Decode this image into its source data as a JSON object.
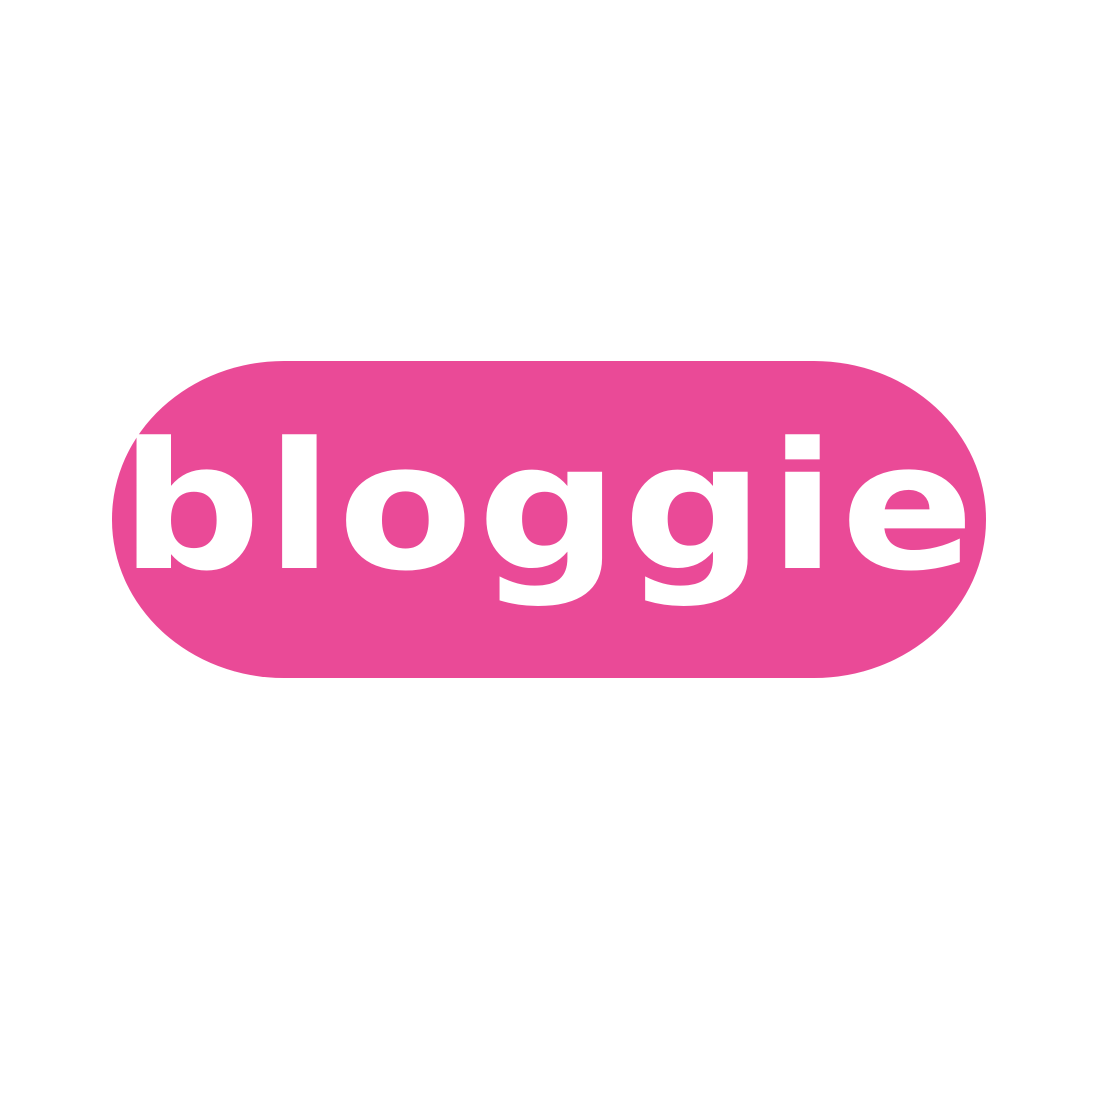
{
  "logo": {
    "wordmark": "bloggie",
    "colors": {
      "background": "#ffffff",
      "pill": "#ea4a97",
      "text": "#ffffff"
    }
  }
}
